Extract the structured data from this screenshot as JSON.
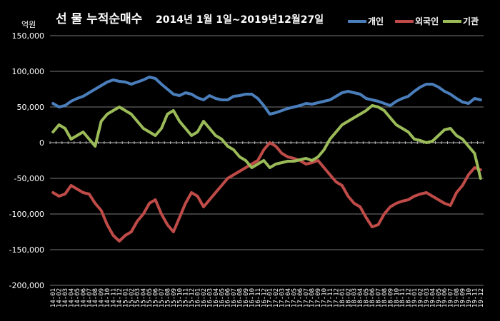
{
  "chart_data": {
    "type": "line",
    "title": "선 물 누적순매수",
    "subtitle": "2014년 1월 1일~2019년12월27일",
    "yunit": "억원",
    "ylim": [
      -200000,
      150000
    ],
    "yticks": [
      150000,
      100000,
      50000,
      0,
      -50000,
      -100000,
      -150000,
      -200000
    ],
    "ytick_labels": [
      "150,000",
      "100,000",
      "50,000",
      "0",
      "-50,000",
      "-100,000",
      "-150,000",
      "-200,000"
    ],
    "grid": true,
    "legend_position": "top-right",
    "x": [
      "14-01",
      "14-02",
      "14-03",
      "14-04",
      "14-05",
      "14-06",
      "14-07",
      "14-08",
      "14-09",
      "14-10",
      "14-11",
      "14-12",
      "15-01",
      "15-02",
      "15-03",
      "15-04",
      "15-05",
      "15-06",
      "15-07",
      "15-08",
      "15-09",
      "15-10",
      "15-11",
      "15-12",
      "16-01",
      "16-02",
      "16-03",
      "16-04",
      "16-05",
      "16-06",
      "16-07",
      "16-08",
      "16-09",
      "16-10",
      "16-11",
      "16-12",
      "17-01",
      "17-02",
      "17-03",
      "17-04",
      "17-05",
      "17-06",
      "17-07",
      "17-08",
      "17-09",
      "17-10",
      "17-11",
      "17-12",
      "18-01",
      "18-02",
      "18-03",
      "18-04",
      "18-05",
      "18-06",
      "18-07",
      "18-08",
      "18-09",
      "18-10",
      "18-11",
      "18-12",
      "19-01",
      "19-02",
      "19-03",
      "19-04",
      "19-05",
      "19-06",
      "19-07",
      "19-08",
      "19-09",
      "19-10",
      "19-11",
      "19-12"
    ],
    "series": [
      {
        "name": "개인",
        "color": "#4A7EBB",
        "values": [
          55000,
          50000,
          52000,
          58000,
          62000,
          65000,
          70000,
          75000,
          80000,
          85000,
          88000,
          86000,
          85000,
          82000,
          85000,
          88000,
          92000,
          90000,
          82000,
          75000,
          68000,
          66000,
          70000,
          68000,
          63000,
          60000,
          66000,
          62000,
          60000,
          60000,
          65000,
          66000,
          68000,
          68000,
          62000,
          52000,
          40000,
          42000,
          45000,
          48000,
          50000,
          52000,
          55000,
          54000,
          56000,
          58000,
          60000,
          65000,
          70000,
          72000,
          70000,
          68000,
          62000,
          60000,
          58000,
          55000,
          52000,
          58000,
          62000,
          65000,
          72000,
          78000,
          82000,
          82000,
          78000,
          72000,
          68000,
          62000,
          57000,
          55000,
          62000,
          60000
        ]
      },
      {
        "name": "외국인",
        "color": "#BE4B48",
        "values": [
          -70000,
          -75000,
          -72000,
          -60000,
          -65000,
          -70000,
          -72000,
          -85000,
          -95000,
          -115000,
          -130000,
          -138000,
          -130000,
          -125000,
          -110000,
          -100000,
          -85000,
          -80000,
          -100000,
          -115000,
          -125000,
          -105000,
          -85000,
          -70000,
          -75000,
          -90000,
          -80000,
          -70000,
          -60000,
          -50000,
          -45000,
          -40000,
          -35000,
          -30000,
          -25000,
          -10000,
          0,
          -5000,
          -15000,
          -20000,
          -22000,
          -25000,
          -30000,
          -28000,
          -25000,
          -35000,
          -45000,
          -55000,
          -60000,
          -75000,
          -85000,
          -90000,
          -105000,
          -118000,
          -115000,
          -100000,
          -90000,
          -85000,
          -82000,
          -80000,
          -75000,
          -72000,
          -70000,
          -75000,
          -80000,
          -85000,
          -88000,
          -70000,
          -60000,
          -45000,
          -35000,
          -38000
        ]
      },
      {
        "name": "기관",
        "color": "#9BBB59",
        "values": [
          15000,
          25000,
          20000,
          5000,
          10000,
          15000,
          5000,
          -5000,
          30000,
          40000,
          45000,
          50000,
          45000,
          40000,
          30000,
          20000,
          15000,
          10000,
          20000,
          40000,
          45000,
          30000,
          20000,
          10000,
          15000,
          30000,
          20000,
          10000,
          5000,
          -5000,
          -10000,
          -20000,
          -25000,
          -35000,
          -30000,
          -25000,
          -35000,
          -30000,
          -28000,
          -26000,
          -26000,
          -24000,
          -22000,
          -25000,
          -20000,
          -10000,
          5000,
          15000,
          25000,
          30000,
          35000,
          40000,
          45000,
          52000,
          50000,
          45000,
          35000,
          25000,
          20000,
          15000,
          5000,
          3000,
          0,
          2000,
          10000,
          18000,
          20000,
          10000,
          5000,
          -5000,
          -15000,
          -50000
        ]
      }
    ]
  }
}
